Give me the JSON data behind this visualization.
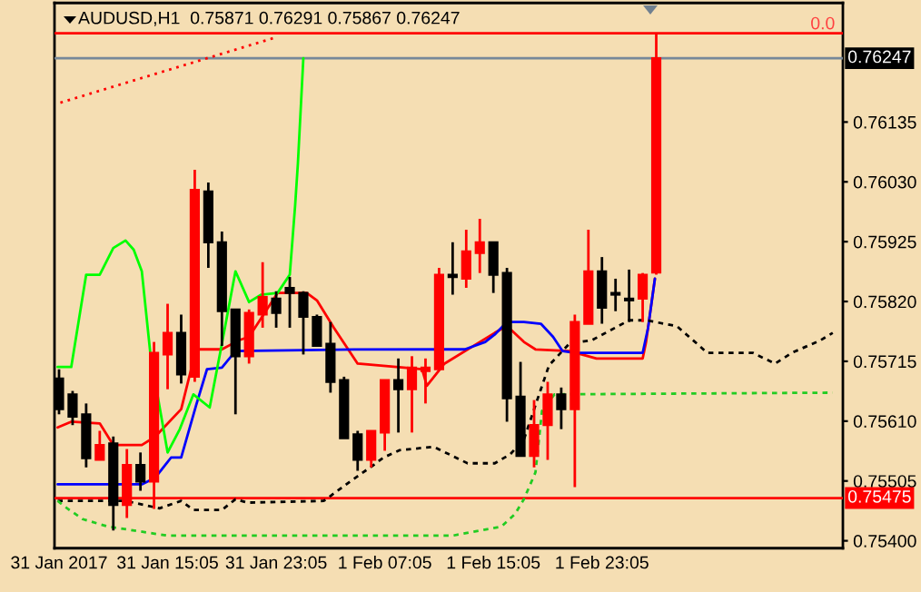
{
  "chart_data": {
    "type": "candlestick",
    "title": "AUDUSD,H1  0.75871 0.76291 0.75867 0.76247",
    "x": [
      "2017-01-31T07:05",
      "2017-01-31T08:05",
      "2017-01-31T09:05",
      "2017-01-31T10:05",
      "2017-01-31T11:05",
      "2017-01-31T12:05",
      "2017-01-31T13:05",
      "2017-01-31T14:05",
      "2017-01-31T15:05",
      "2017-01-31T16:05",
      "2017-01-31T17:05",
      "2017-01-31T18:05",
      "2017-01-31T19:05",
      "2017-01-31T20:05",
      "2017-01-31T21:05",
      "2017-01-31T22:05",
      "2017-01-31T23:05",
      "2017-02-01T00:05",
      "2017-02-01T01:05",
      "2017-02-01T02:05",
      "2017-02-01T03:05",
      "2017-02-01T04:05",
      "2017-02-01T05:05",
      "2017-02-01T06:05",
      "2017-02-01T07:05",
      "2017-02-01T08:05",
      "2017-02-01T09:05",
      "2017-02-01T10:05",
      "2017-02-01T11:05",
      "2017-02-01T12:05",
      "2017-02-01T13:05",
      "2017-02-01T14:05",
      "2017-02-01T15:05",
      "2017-02-01T16:05",
      "2017-02-01T17:05",
      "2017-02-01T18:05",
      "2017-02-01T19:05",
      "2017-02-01T20:05",
      "2017-02-01T21:05",
      "2017-02-01T22:05",
      "2017-02-01T23:05",
      "2017-02-02T00:05",
      "2017-02-02T01:05",
      "2017-02-02T02:05",
      "2017-02-02T03:05"
    ],
    "ohlc": [
      [
        0.75685,
        0.75701,
        0.75622,
        0.75631
      ],
      [
        0.75657,
        0.75663,
        0.75603,
        0.75618
      ],
      [
        0.75622,
        0.75641,
        0.75529,
        0.75545
      ],
      [
        0.75542,
        0.75593,
        0.75542,
        0.75568
      ],
      [
        0.75571,
        0.75583,
        0.75418,
        0.75463
      ],
      [
        0.75463,
        0.75561,
        0.7544,
        0.75533
      ],
      [
        0.75533,
        0.75555,
        0.75488,
        0.75504
      ],
      [
        0.75504,
        0.75749,
        0.75456,
        0.7573
      ],
      [
        0.75727,
        0.75816,
        0.75666,
        0.75765
      ],
      [
        0.75765,
        0.75797,
        0.75676,
        0.75692
      ],
      [
        0.75688,
        0.76051,
        0.75679,
        0.76016
      ],
      [
        0.76013,
        0.76029,
        0.75879,
        0.75924
      ],
      [
        0.75924,
        0.75943,
        0.75742,
        0.75803
      ],
      [
        0.75806,
        0.75806,
        0.75622,
        0.75724
      ],
      [
        0.75724,
        0.75806,
        0.75711,
        0.758
      ],
      [
        0.75797,
        0.75889,
        0.75774,
        0.75828
      ],
      [
        0.75825,
        0.75838,
        0.75774,
        0.758
      ],
      [
        0.75844,
        0.75863,
        0.75774,
        0.75835
      ],
      [
        0.75835,
        0.75838,
        0.75727,
        0.75793
      ],
      [
        0.75793,
        0.75797,
        0.75742,
        0.75742
      ],
      [
        0.75746,
        0.75784,
        0.7566,
        0.75679
      ],
      [
        0.75682,
        0.75688,
        0.7558,
        0.7558
      ],
      [
        0.75587,
        0.75593,
        0.75523,
        0.75542
      ],
      [
        0.75542,
        0.75593,
        0.75529,
        0.75593
      ],
      [
        0.7559,
        0.75682,
        0.75558,
        0.75682
      ],
      [
        0.75682,
        0.7572,
        0.7559,
        0.75666
      ],
      [
        0.75666,
        0.75724,
        0.7559,
        0.75704
      ],
      [
        0.75698,
        0.7572,
        0.75641,
        0.75704
      ],
      [
        0.75701,
        0.75879,
        0.75701,
        0.75867
      ],
      [
        0.75867,
        0.75924,
        0.75832,
        0.75863
      ],
      [
        0.7586,
        0.75946,
        0.75844,
        0.75908
      ],
      [
        0.75905,
        0.75965,
        0.7587,
        0.75924
      ],
      [
        0.75924,
        0.75924,
        0.75835,
        0.75867
      ],
      [
        0.7587,
        0.75879,
        0.75609,
        0.7565
      ],
      [
        0.75653,
        0.75714,
        0.75549,
        0.75549
      ],
      [
        0.75549,
        0.75647,
        0.75529,
        0.75603
      ],
      [
        0.75603,
        0.75679,
        0.75542,
        0.75657
      ],
      [
        0.75657,
        0.75669,
        0.75596,
        0.75631
      ],
      [
        0.75631,
        0.75797,
        0.75494,
        0.75784
      ],
      [
        0.75781,
        0.75946,
        0.75781,
        0.75873
      ],
      [
        0.75873,
        0.75898,
        0.75781,
        0.75809
      ],
      [
        0.75835,
        0.7586,
        0.75803,
        0.75832
      ],
      [
        0.75825,
        0.75876,
        0.75784,
        0.75822
      ],
      [
        0.75825,
        0.7587,
        0.75784,
        0.75867
      ],
      [
        0.75871,
        0.76291,
        0.75867,
        0.76247
      ]
    ],
    "colors": [
      "#000000",
      "#000000",
      "#000000",
      "#ff0000",
      "#000000",
      "#ff0000",
      "#000000",
      "#ff0000",
      "#ff0000",
      "#000000",
      "#ff0000",
      "#000000",
      "#000000",
      "#000000",
      "#ff0000",
      "#ff0000",
      "#000000",
      "#000000",
      "#000000",
      "#000000",
      "#000000",
      "#000000",
      "#000000",
      "#ff0000",
      "#ff0000",
      "#000000",
      "#ff0000",
      "#ff0000",
      "#ff0000",
      "#000000",
      "#ff0000",
      "#ff0000",
      "#000000",
      "#000000",
      "#000000",
      "#ff0000",
      "#ff0000",
      "#000000",
      "#ff0000",
      "#ff0000",
      "#000000",
      "#000000",
      "#000000",
      "#ff0000",
      "#ff0000"
    ],
    "series": [
      {
        "type": "line",
        "color": "#ff0000",
        "line_style": "solid",
        "x": [
          "2017-01-31T06:59",
          "2017-01-31T07:59",
          "2017-01-31T10:05",
          "2017-01-31T11:05",
          "2017-01-31T13:11",
          "2017-01-31T14:11",
          "2017-01-31T16:05",
          "2017-01-31T17:11",
          "2017-01-31T19:05",
          "2017-01-31T20:20",
          "2017-01-31T21:05",
          "2017-01-31T23:11",
          "2017-02-01T01:20",
          "2017-02-01T02:05",
          "2017-02-01T03:20",
          "2017-02-01T05:05",
          "2017-02-01T09:50",
          "2017-02-01T10:11",
          "2017-02-01T11:29",
          "2017-02-01T15:11",
          "2017-02-01T16:05",
          "2017-02-01T17:20",
          "2017-02-01T18:11",
          "2017-02-01T20:41",
          "2017-02-01T22:41",
          "2017-02-02T02:05",
          "2017-02-02T02:20",
          "2017-02-02T02:59"
        ],
        "values": [
          0.75599,
          0.75609,
          0.75606,
          0.75568,
          0.75568,
          0.75583,
          0.75631,
          0.75736,
          0.75736,
          0.75752,
          0.75758,
          0.75835,
          0.75835,
          0.75822,
          0.75774,
          0.75711,
          0.75701,
          0.75672,
          0.75711,
          0.75765,
          0.75777,
          0.75749,
          0.75736,
          0.75733,
          0.7572,
          0.7572,
          0.75749,
          0.7586
        ]
      },
      {
        "type": "line",
        "color": "#0000ff",
        "line_style": "solid",
        "x": [
          "2017-01-31T06:59",
          "2017-01-31T13:11",
          "2017-01-31T14:11",
          "2017-01-31T15:20",
          "2017-01-31T16:05",
          "2017-01-31T17:11",
          "2017-01-31T17:59",
          "2017-01-31T19:05",
          "2017-01-31T20:05",
          "2017-02-01T04:50",
          "2017-02-01T12:59",
          "2017-02-01T14:29",
          "2017-02-01T15:11",
          "2017-02-01T16:05",
          "2017-02-01T17:20",
          "2017-02-01T18:35",
          "2017-02-01T19:29",
          "2017-02-01T20:11",
          "2017-02-01T21:05",
          "2017-02-02T02:05",
          "2017-02-02T02:29",
          "2017-02-02T02:59"
        ],
        "values": [
          0.75499,
          0.75499,
          0.75511,
          0.75546,
          0.75546,
          0.75638,
          0.75701,
          0.75704,
          0.75733,
          0.75736,
          0.75736,
          0.75749,
          0.75762,
          0.75784,
          0.75784,
          0.75781,
          0.75758,
          0.75733,
          0.7573,
          0.7573,
          0.75774,
          0.7586
        ]
      },
      {
        "type": "line",
        "color": "#00ff00",
        "line_style": "solid",
        "x": [
          "2017-01-31T06:59",
          "2017-01-31T07:59",
          "2017-01-31T09:05",
          "2017-01-31T10:05",
          "2017-01-31T11:05",
          "2017-01-31T11:59",
          "2017-01-31T12:35",
          "2017-01-31T13:11",
          "2017-01-31T13:50",
          "2017-01-31T15:05",
          "2017-01-31T15:59",
          "2017-01-31T16:59",
          "2017-01-31T18:11",
          "2017-01-31T19:05",
          "2017-01-31T20:05",
          "2017-01-31T21:05",
          "2017-01-31T21:59",
          "2017-01-31T23:11",
          "2017-02-01T00:05",
          "2017-02-01T00:29",
          "2017-02-01T00:41",
          "2017-02-01T01:05"
        ],
        "values": [
          0.75705,
          0.75705,
          0.75867,
          0.75867,
          0.75914,
          0.75927,
          0.75911,
          0.75873,
          0.75724,
          0.75555,
          0.75596,
          0.75657,
          0.75634,
          0.75746,
          0.75873,
          0.75819,
          0.75832,
          0.75835,
          0.75867,
          0.7599,
          0.76063,
          0.76247
        ]
      },
      {
        "type": "line",
        "color": "#000000",
        "line_style": "dashed",
        "x": [
          "2017-01-31T06:59",
          "2017-01-31T11:59",
          "2017-01-31T14:29",
          "2017-01-31T16:05",
          "2017-01-31T16:59",
          "2017-01-31T19:05",
          "2017-01-31T20:05",
          "2017-01-31T20:59",
          "2017-02-01T02:35",
          "2017-02-01T03:20",
          "2017-02-01T04:35",
          "2017-02-01T06:05",
          "2017-02-01T06:59",
          "2017-02-01T08:11",
          "2017-02-01T10:41",
          "2017-02-01T13:11",
          "2017-02-01T15:11",
          "2017-02-01T16:20",
          "2017-02-01T17:20",
          "2017-02-01T18:35",
          "2017-02-01T19:11",
          "2017-02-01T20:41",
          "2017-02-01T22:20",
          "2017-02-02T01:05",
          "2017-02-02T02:20",
          "2017-02-02T04:35",
          "2017-02-02T06:05",
          "2017-02-02T06:50",
          "2017-02-02T10:11",
          "2017-02-02T11:50",
          "2017-02-02T13:05",
          "2017-02-02T15:11",
          "2017-02-02T16:05"
        ],
        "values": [
          0.7547,
          0.7547,
          0.75457,
          0.7547,
          0.75454,
          0.75454,
          0.75473,
          0.75467,
          0.7547,
          0.75483,
          0.75505,
          0.7553,
          0.75546,
          0.75559,
          0.75565,
          0.75536,
          0.75536,
          0.75552,
          0.75578,
          0.75666,
          0.75708,
          0.75746,
          0.75752,
          0.75787,
          0.75787,
          0.75777,
          0.75746,
          0.7573,
          0.7573,
          0.75711,
          0.7573,
          0.75752,
          0.75765
        ]
      },
      {
        "type": "line",
        "color": "#22cc22",
        "line_style": "dashed",
        "x": [
          "2017-01-31T06:59",
          "2017-01-31T07:41",
          "2017-01-31T08:50",
          "2017-01-31T10:41",
          "2017-01-31T15:05",
          "2017-02-01T12:05",
          "2017-02-01T15:41",
          "2017-02-01T16:41",
          "2017-02-01T17:20",
          "2017-02-01T18:11",
          "2017-02-01T18:40",
          "2017-02-01T19:35",
          "2017-02-02T16:05"
        ],
        "values": [
          0.7547,
          0.75457,
          0.75438,
          0.75425,
          0.75409,
          0.75409,
          0.75425,
          0.75447,
          0.75473,
          0.7552,
          0.75628,
          0.75657,
          0.7566
        ]
      },
      {
        "type": "line",
        "color": "#ff0000",
        "line_style": "dotted",
        "x": [
          "2017-01-31T07:11",
          "2017-01-31T22:59"
        ],
        "values": [
          0.76169,
          0.76283
        ]
      }
    ],
    "ref_lines": [
      {
        "axis": "y",
        "value": 0.76291,
        "color": "#ff0000",
        "line_style": "solid"
      },
      {
        "axis": "y",
        "value": 0.76247,
        "label": "0.76247",
        "color": "#778899",
        "line_style": "solid"
      },
      {
        "axis": "y",
        "value": 0.75475,
        "label": "0.75475",
        "color": "#ff0000",
        "line_style": "solid"
      }
    ],
    "annotations": [
      "0.0"
    ],
    "xlim": [
      "2017-01-31T06:45",
      "2017-02-02T16:50"
    ],
    "ylim": [
      0.75387,
      0.76344
    ],
    "xticks": [
      {
        "value": "2017-01-31T07:05",
        "label": "31 Jan 2017"
      },
      {
        "value": "2017-01-31T15:05",
        "label": "31 Jan 15:05"
      },
      {
        "value": "2017-01-31T23:05",
        "label": "31 Jan 23:05"
      },
      {
        "value": "2017-02-01T07:05",
        "label": "1 Feb 07:05"
      },
      {
        "value": "2017-02-01T15:05",
        "label": "1 Feb 15:05"
      },
      {
        "value": "2017-02-01T23:05",
        "label": "1 Feb 23:05"
      }
    ],
    "yticks": [
      {
        "value": 0.754,
        "label": "0.75400"
      },
      {
        "value": 0.75505,
        "label": "0.75505"
      },
      {
        "value": 0.7561,
        "label": "0.75610"
      },
      {
        "value": 0.75715,
        "label": "0.75715"
      },
      {
        "value": 0.7582,
        "label": "0.75820"
      },
      {
        "value": 0.75925,
        "label": "0.75925"
      },
      {
        "value": 0.7603,
        "label": "0.76030"
      },
      {
        "value": 0.76135,
        "label": "0.76135"
      }
    ],
    "legend": false
  }
}
